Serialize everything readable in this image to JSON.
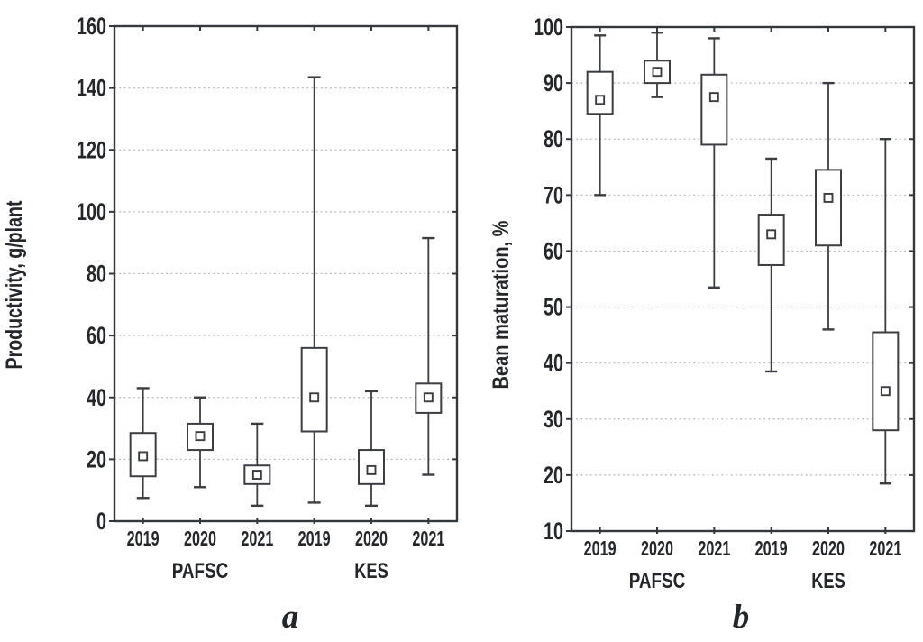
{
  "styles": {
    "background": "#ffffff",
    "line_color": "#3a3d42",
    "frame_color": "#34373c",
    "grid_color": "#b3b3b3",
    "text_color": "#23262b"
  },
  "chart_data": [
    {
      "id": "a",
      "type": "box",
      "panel_letter": "a",
      "ylabel": "Productivity, g/plant",
      "ylim": [
        0,
        160
      ],
      "yticks": [
        0,
        20,
        40,
        60,
        80,
        100,
        120,
        140,
        160
      ],
      "grid": true,
      "categories": [
        "2019",
        "2020",
        "2021",
        "2019",
        "2020",
        "2021"
      ],
      "group_labels": [
        {
          "label": "PAFSC",
          "cat_index": 1
        },
        {
          "label": "KES",
          "cat_index": 4
        }
      ],
      "boxes": [
        {
          "group": "PAFSC",
          "category": "2019",
          "whisker_low": 7.5,
          "box_low": 14.5,
          "mean": 21,
          "box_high": 28.5,
          "whisker_high": 43
        },
        {
          "group": "PAFSC",
          "category": "2020",
          "whisker_low": 11,
          "box_low": 23,
          "mean": 27.5,
          "box_high": 31.5,
          "whisker_high": 40
        },
        {
          "group": "PAFSC",
          "category": "2021",
          "whisker_low": 5,
          "box_low": 12,
          "mean": 15,
          "box_high": 18,
          "whisker_high": 31.5
        },
        {
          "group": "KES",
          "category": "2019",
          "whisker_low": 6,
          "box_low": 29,
          "mean": 40,
          "box_high": 56,
          "whisker_high": 143.5
        },
        {
          "group": "KES",
          "category": "2020",
          "whisker_low": 5,
          "box_low": 12,
          "mean": 16.5,
          "box_high": 23,
          "whisker_high": 42
        },
        {
          "group": "KES",
          "category": "2021",
          "whisker_low": 15,
          "box_low": 35,
          "mean": 40,
          "box_high": 44.5,
          "whisker_high": 91.5
        }
      ]
    },
    {
      "id": "b",
      "type": "box",
      "panel_letter": "b",
      "ylabel": "Bean maturation, %",
      "ylim": [
        10,
        100
      ],
      "yticks": [
        10,
        20,
        30,
        40,
        50,
        60,
        70,
        80,
        90,
        100
      ],
      "grid": true,
      "categories": [
        "2019",
        "2020",
        "2021",
        "2019",
        "2020",
        "2021"
      ],
      "group_labels": [
        {
          "label": "PAFSC",
          "cat_index": 1
        },
        {
          "label": "KES",
          "cat_index": 4
        }
      ],
      "boxes": [
        {
          "group": "PAFSC",
          "category": "2019",
          "whisker_low": 70,
          "box_low": 84.5,
          "mean": 87,
          "box_high": 92,
          "whisker_high": 98.5
        },
        {
          "group": "PAFSC",
          "category": "2020",
          "whisker_low": 87.5,
          "box_low": 90,
          "mean": 92,
          "box_high": 94,
          "whisker_high": 99
        },
        {
          "group": "PAFSC",
          "category": "2021",
          "whisker_low": 53.5,
          "box_low": 79,
          "mean": 87.5,
          "box_high": 91.5,
          "whisker_high": 98
        },
        {
          "group": "KES",
          "category": "2019",
          "whisker_low": 38.5,
          "box_low": 57.5,
          "mean": 63,
          "box_high": 66.5,
          "whisker_high": 76.5
        },
        {
          "group": "KES",
          "category": "2020",
          "whisker_low": 46,
          "box_low": 61,
          "mean": 69.5,
          "box_high": 74.5,
          "whisker_high": 90
        },
        {
          "group": "KES",
          "category": "2021",
          "whisker_low": 18.5,
          "box_low": 28,
          "mean": 35,
          "box_high": 45.5,
          "whisker_high": 80
        }
      ]
    }
  ]
}
